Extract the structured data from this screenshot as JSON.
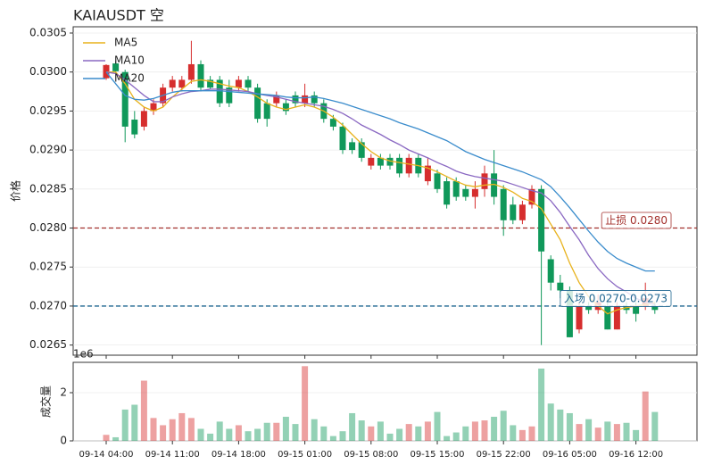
{
  "chart_data": {
    "type": "candlestick",
    "title": "KAIAUSDT  空",
    "ylabel": "价格",
    "categories": [
      "09-14 04:00",
      null,
      null,
      null,
      null,
      null,
      null,
      "09-14 11:00",
      null,
      null,
      null,
      null,
      null,
      null,
      "09-14 18:00",
      null,
      null,
      null,
      null,
      null,
      null,
      "09-15 01:00",
      null,
      null,
      null,
      null,
      null,
      null,
      "09-15 08:00",
      null,
      null,
      null,
      null,
      null,
      null,
      "09-15 15:00",
      null,
      null,
      null,
      null,
      null,
      null,
      "09-15 22:00",
      null,
      null,
      null,
      null,
      null,
      null,
      "09-16 05:00",
      null,
      null,
      null,
      null,
      null,
      null,
      "09-16 12:00",
      null,
      null
    ],
    "open": [
      0.02992,
      0.03011,
      0.03,
      0.02939,
      0.0293,
      0.0295,
      0.0296,
      0.0298,
      0.0298,
      0.0299,
      0.0301,
      0.0299,
      0.0299,
      0.0298,
      0.0298,
      0.0299,
      0.0298,
      0.0296,
      0.0296,
      0.0296,
      0.0297,
      0.0296,
      0.0297,
      0.0296,
      0.0294,
      0.0293,
      0.0291,
      0.0291,
      0.0288,
      0.0289,
      0.0289,
      0.0289,
      0.0287,
      0.0289,
      0.0286,
      0.0287,
      0.0286,
      0.0286,
      0.0285,
      0.0284,
      0.0285,
      0.0287,
      0.0285,
      0.0283,
      0.0281,
      0.0283,
      0.0285,
      0.0276,
      0.0273,
      0.0272,
      0.0267,
      0.027,
      0.02695,
      0.027,
      0.0267,
      0.027,
      0.027,
      0.027,
      0.027
    ],
    "high": [
      0.0301,
      0.03014,
      0.03003,
      0.0295,
      0.02955,
      0.02965,
      0.02985,
      0.02995,
      0.02995,
      0.0304,
      0.03015,
      0.02995,
      0.02995,
      0.0299,
      0.02995,
      0.02995,
      0.02985,
      0.02965,
      0.02975,
      0.02965,
      0.02975,
      0.02985,
      0.02975,
      0.02965,
      0.02945,
      0.02935,
      0.02915,
      0.02915,
      0.02895,
      0.02895,
      0.02895,
      0.02895,
      0.02895,
      0.02895,
      0.0289,
      0.02875,
      0.02865,
      0.02865,
      0.02855,
      0.0286,
      0.0288,
      0.029,
      0.02855,
      0.0284,
      0.02835,
      0.02855,
      0.02855,
      0.02765,
      0.0274,
      0.02725,
      0.02705,
      0.02705,
      0.02715,
      0.0271,
      0.02705,
      0.02705,
      0.02705,
      0.0273,
      0.02705
    ],
    "low": [
      0.0299,
      0.02998,
      0.0291,
      0.02915,
      0.02925,
      0.02945,
      0.02955,
      0.02975,
      0.02975,
      0.02985,
      0.02975,
      0.02978,
      0.02955,
      0.02955,
      0.02975,
      0.02975,
      0.02935,
      0.0293,
      0.02955,
      0.02945,
      0.02955,
      0.02955,
      0.02955,
      0.02935,
      0.02925,
      0.02895,
      0.02895,
      0.02885,
      0.02875,
      0.02875,
      0.02875,
      0.02865,
      0.02865,
      0.02865,
      0.02855,
      0.02845,
      0.02825,
      0.02835,
      0.02835,
      0.02825,
      0.0284,
      0.0283,
      0.0279,
      0.02805,
      0.02805,
      0.02825,
      0.0265,
      0.0272,
      0.0271,
      0.0266,
      0.02665,
      0.0269,
      0.0269,
      0.0267,
      0.0267,
      0.0269,
      0.0268,
      0.02695,
      0.0269
    ],
    "close": [
      0.03009,
      0.03001,
      0.0293,
      0.0292,
      0.0295,
      0.0296,
      0.0298,
      0.0299,
      0.0299,
      0.0301,
      0.0298,
      0.0298,
      0.0296,
      0.0296,
      0.0299,
      0.0298,
      0.0294,
      0.0294,
      0.0297,
      0.0295,
      0.0296,
      0.0297,
      0.0296,
      0.0294,
      0.0293,
      0.029,
      0.029,
      0.0289,
      0.0289,
      0.0288,
      0.0288,
      0.0287,
      0.0289,
      0.0287,
      0.0288,
      0.0285,
      0.0283,
      0.0284,
      0.0284,
      0.0285,
      0.0287,
      0.0284,
      0.0281,
      0.0281,
      0.0283,
      0.0285,
      0.0277,
      0.0273,
      0.0272,
      0.0266,
      0.027,
      0.02695,
      0.02705,
      0.0267,
      0.027,
      0.02695,
      0.0269,
      0.0271,
      0.02695
    ],
    "up_color": "#d62e2e",
    "down_color": "#10985a",
    "series": [
      {
        "name": "MA5",
        "color": "#e8b21c",
        "values": [
          0.03,
          0.03,
          0.02985,
          0.02965,
          0.02955,
          0.0295,
          0.02955,
          0.02968,
          0.02978,
          0.02988,
          0.0299,
          0.02988,
          0.02985,
          0.02982,
          0.0298,
          0.02975,
          0.02968,
          0.0296,
          0.02955,
          0.02952,
          0.02955,
          0.02958,
          0.02955,
          0.0295,
          0.02942,
          0.02932,
          0.0292,
          0.02908,
          0.02898,
          0.0289,
          0.02886,
          0.02884,
          0.02882,
          0.0288,
          0.02877,
          0.02872,
          0.02866,
          0.0286,
          0.02855,
          0.02853,
          0.02855,
          0.02856,
          0.02852,
          0.02846,
          0.02838,
          0.02834,
          0.02825,
          0.02805,
          0.02785,
          0.02755,
          0.0273,
          0.02712,
          0.027,
          0.0269,
          0.02695,
          0.02698,
          0.027,
          0.02702,
          0.02704
        ]
      },
      {
        "name": "MA10",
        "color": "#8a68c2",
        "values": [
          0.03,
          0.02998,
          0.0299,
          0.0298,
          0.0297,
          0.02962,
          0.02962,
          0.02968,
          0.02972,
          0.02975,
          0.02976,
          0.02978,
          0.02978,
          0.02977,
          0.02976,
          0.02975,
          0.02972,
          0.0297,
          0.02968,
          0.02965,
          0.02962,
          0.0296,
          0.02958,
          0.02956,
          0.02952,
          0.02947,
          0.0294,
          0.02932,
          0.02926,
          0.0292,
          0.02913,
          0.02907,
          0.029,
          0.02895,
          0.0289,
          0.02884,
          0.02879,
          0.02873,
          0.02869,
          0.02866,
          0.02864,
          0.02862,
          0.0286,
          0.02856,
          0.02852,
          0.02848,
          0.02845,
          0.02835,
          0.0282,
          0.02802,
          0.02785,
          0.02765,
          0.02748,
          0.02735,
          0.02725,
          0.02718,
          0.0271,
          0.02705,
          0.02702
        ]
      },
      {
        "name": "MA20",
        "color": "#3a8ccc",
        "values": [
          0.03,
          0.02985,
          0.0297,
          0.02965,
          0.02964,
          0.02966,
          0.0297,
          0.02974,
          0.02976,
          0.02976,
          0.02976,
          0.02976,
          0.02976,
          0.02975,
          0.02974,
          0.02973,
          0.02972,
          0.02971,
          0.0297,
          0.02968,
          0.02967,
          0.02967,
          0.02968,
          0.02966,
          0.02963,
          0.0296,
          0.02956,
          0.02952,
          0.02948,
          0.02944,
          0.0294,
          0.02935,
          0.02931,
          0.02927,
          0.02922,
          0.02917,
          0.02912,
          0.02905,
          0.02898,
          0.02893,
          0.02888,
          0.02884,
          0.0288,
          0.02876,
          0.02872,
          0.02867,
          0.02862,
          0.02853,
          0.0284,
          0.02826,
          0.02811,
          0.02796,
          0.02782,
          0.0277,
          0.02761,
          0.02755,
          0.0275,
          0.02745,
          0.02745
        ]
      }
    ],
    "ylim": [
      0.02637,
      0.03058
    ],
    "yticks": [
      {
        "value": 0.0265,
        "label": "0.0265"
      },
      {
        "value": 0.027,
        "label": "0.0270"
      },
      {
        "value": 0.0275,
        "label": "0.0275"
      },
      {
        "value": 0.028,
        "label": "0.0280"
      },
      {
        "value": 0.0285,
        "label": "0.0285"
      },
      {
        "value": 0.029,
        "label": "0.0290"
      },
      {
        "value": 0.0295,
        "label": "0.0295"
      },
      {
        "value": 0.03,
        "label": "0.0300"
      },
      {
        "value": 0.0305,
        "label": "0.0305"
      }
    ],
    "grid": true,
    "legend": "upper left",
    "hlines": [
      {
        "value": 0.028,
        "label": "止损 0.0280",
        "color": "#a3302c"
      },
      {
        "value": 0.027,
        "label": "入场 0.0270-0.0273",
        "color": "#1f6691"
      }
    ],
    "volume": {
      "ylabel": "成交量",
      "offset_label": "1e6",
      "values": [
        0.25,
        0.15,
        1.3,
        1.5,
        2.5,
        0.95,
        0.65,
        0.9,
        1.15,
        0.95,
        0.5,
        0.3,
        0.8,
        0.5,
        0.65,
        0.4,
        0.5,
        0.75,
        0.75,
        1.0,
        0.7,
        3.1,
        0.9,
        0.6,
        0.2,
        0.4,
        1.15,
        0.85,
        0.6,
        0.8,
        0.3,
        0.5,
        0.7,
        0.6,
        0.8,
        1.2,
        0.2,
        0.35,
        0.6,
        0.8,
        0.85,
        1.0,
        1.25,
        0.65,
        0.45,
        0.6,
        3.0,
        1.55,
        1.3,
        1.15,
        0.7,
        0.9,
        0.55,
        0.8,
        0.7,
        0.75,
        0.45,
        2.05,
        1.2
      ],
      "ylim": [
        0,
        3.26
      ],
      "yticks": [
        0,
        2
      ]
    }
  }
}
